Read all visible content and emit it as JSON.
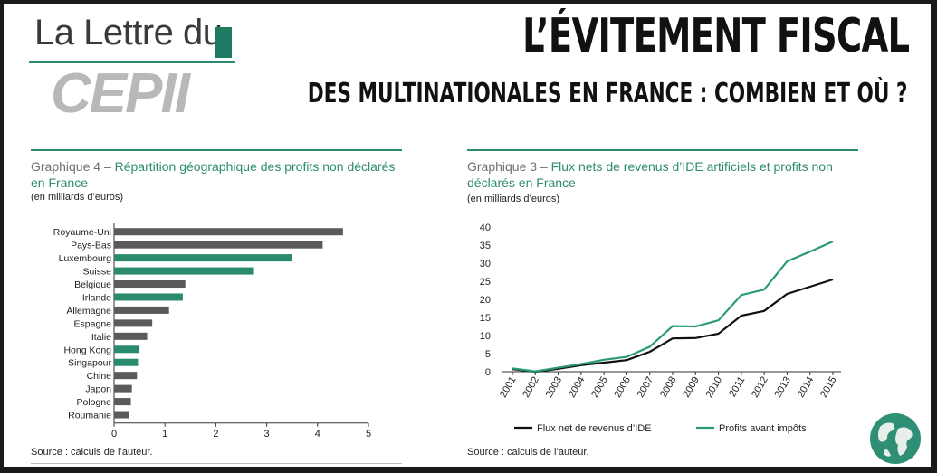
{
  "header": {
    "logo_line1": "La Lettre du",
    "logo_line2": "CEPII",
    "title": "L’ÉVITEMENT FISCAL",
    "subtitle": "DES MULTINATIONALES EN FRANCE : COMBIEN ET OÙ ?"
  },
  "colors": {
    "accent": "#2e8b72",
    "bar_grey": "#5a5a5a",
    "bar_green": "#2a8a6e",
    "line_black": "#111111"
  },
  "chart_data": [
    {
      "type": "bar",
      "orientation": "horizontal",
      "title_number": "Graphique 4 –",
      "title": "Répartition géographique des profits non déclarés en France",
      "unit": "(en milliards d’euros)",
      "source": "Source : calculs de l’auteur.",
      "categories": [
        "Royaume-Uni",
        "Pays-Bas",
        "Luxembourg",
        "Suisse",
        "Belgique",
        "Irlande",
        "Allemagne",
        "Espagne",
        "Italie",
        "Hong Kong",
        "Singapour",
        "Chine",
        "Japon",
        "Pologne",
        "Roumanie"
      ],
      "values": [
        4.5,
        4.1,
        3.5,
        2.75,
        1.4,
        1.35,
        1.08,
        0.75,
        0.65,
        0.5,
        0.47,
        0.45,
        0.35,
        0.33,
        0.3
      ],
      "highlight": [
        "Luxembourg",
        "Suisse",
        "Irlande",
        "Hong Kong",
        "Singapour"
      ],
      "xlim": [
        0,
        5
      ],
      "xticks": [
        "0",
        "1",
        "2",
        "3",
        "4",
        "5"
      ]
    },
    {
      "type": "line",
      "title_number": "Graphique 3 –",
      "title": "Flux nets de revenus d’IDE artificiels et profits non déclarés en France",
      "unit": "(en milliards d’euros)",
      "source": "Source : calculs de l’auteur.",
      "x": [
        "2001",
        "2002",
        "2003",
        "2004",
        "2005",
        "2006",
        "2007",
        "2008",
        "2009",
        "2010",
        "2011",
        "2012",
        "2013",
        "2014",
        "2015"
      ],
      "ylim": [
        0,
        40
      ],
      "yticks": [
        "0",
        "5",
        "10",
        "15",
        "20",
        "25",
        "30",
        "35",
        "40"
      ],
      "series": [
        {
          "name": "Flux net de revenus d’IDE",
          "color": "#111111",
          "values": [
            0.7,
            0.0,
            0.8,
            1.8,
            2.5,
            3.2,
            5.5,
            9.2,
            9.3,
            10.5,
            15.5,
            16.8,
            21.5,
            23.5,
            25.5
          ]
        },
        {
          "name": "Profits avant impôts",
          "color": "#2a9a7a",
          "values": [
            0.9,
            0.1,
            1.1,
            2.1,
            3.3,
            4.1,
            6.9,
            12.6,
            12.5,
            14.2,
            21.2,
            22.7,
            30.5,
            33.2,
            36.0
          ]
        }
      ]
    }
  ]
}
